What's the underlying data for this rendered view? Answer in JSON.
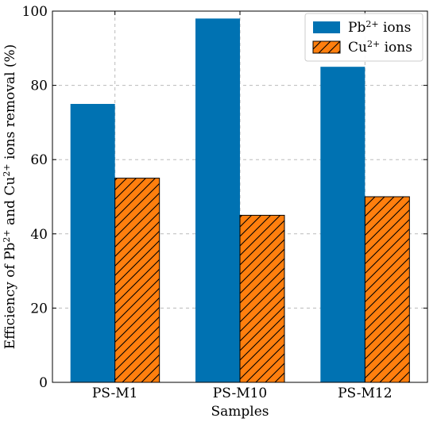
{
  "chart_data": {
    "type": "bar",
    "title": "",
    "xlabel": "Samples",
    "ylabel": {
      "prefix": "Efficiency of Pb",
      "sup1": "2+",
      "middle": " and Cu",
      "sup2": "2+",
      "suffix": " ions removal (%)"
    },
    "categories": [
      "PS-M1",
      "PS-M10",
      "PS-M12"
    ],
    "ylim": [
      0,
      100
    ],
    "yticks": [
      "0",
      "20",
      "40",
      "60",
      "80",
      "100"
    ],
    "grid": true,
    "legend_position": "top-right",
    "series": [
      {
        "name": "Pb2+ ions",
        "label": {
          "base": "Pb",
          "sup": "2+",
          "rest": " ions"
        },
        "values": [
          75,
          98,
          85
        ],
        "color": "#0072b2",
        "pattern": "solid"
      },
      {
        "name": "Cu2+ ions",
        "label": {
          "base": "Cu",
          "sup": "2+",
          "rest": " ions"
        },
        "values": [
          55,
          45,
          50
        ],
        "color": "#ff7f0e",
        "pattern": "hatch"
      }
    ]
  }
}
